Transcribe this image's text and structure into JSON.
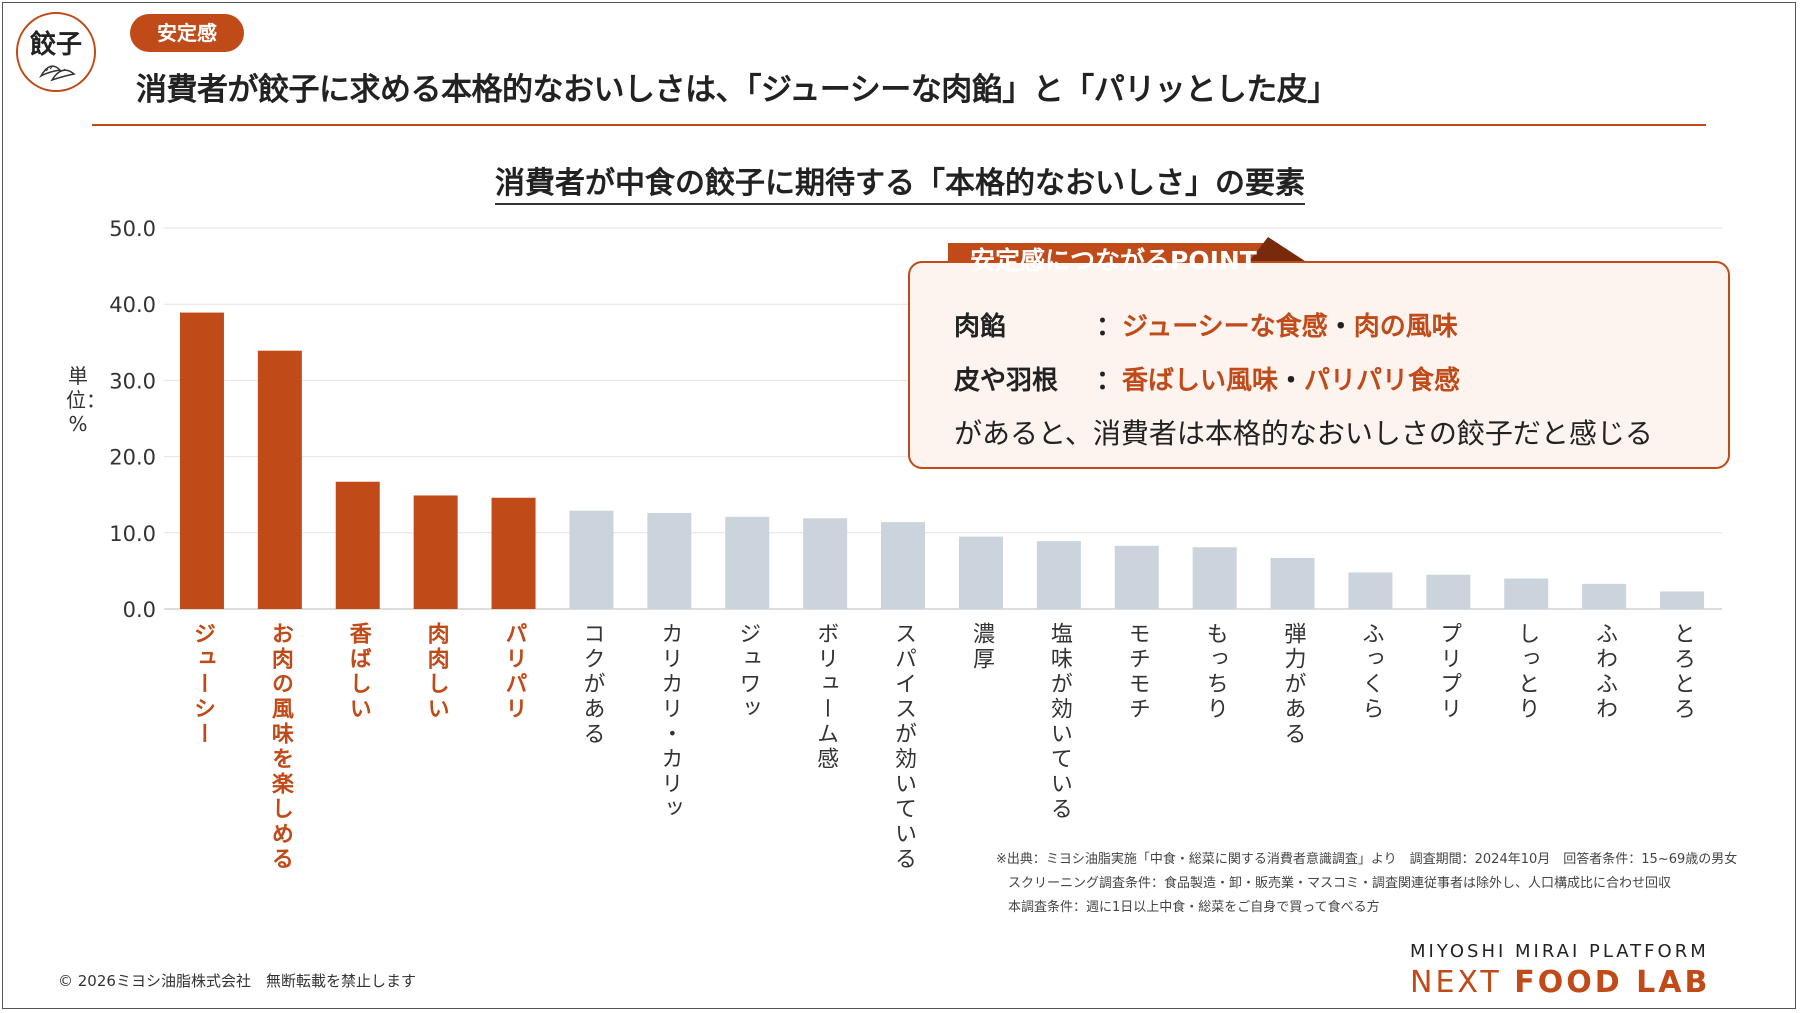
{
  "header": {
    "logo_text": "餃子",
    "tag": "安定感",
    "title": "消費者が餃子に求める本格的なおいしさは、「ジューシーな肉餡」と「パリッとした皮」"
  },
  "colors": {
    "accent": "#c04a18",
    "bar_highlight": "#c04a18",
    "bar_normal": "#cbd3dc",
    "grid": "#e3e3e3"
  },
  "chart_data": {
    "type": "bar",
    "title": "消費者が中食の餃子に期待する「本格的なおいしさ」の要素",
    "ylabel": "単位：%",
    "ylim": [
      0,
      50
    ],
    "yticks": [
      "50.0",
      "40.0",
      "30.0",
      "20.0",
      "10.0",
      "0.0"
    ],
    "ytick_values": [
      50,
      40,
      30,
      20,
      10,
      0
    ],
    "grid": true,
    "categories": [
      "ジューシー",
      "お肉の風味を楽しめる",
      "香ばしい",
      "肉肉しい",
      "パリパリ",
      "コクがある",
      "カリカリ・カリッ",
      "ジュワッ",
      "ボリューム感",
      "スパイスが効いている",
      "濃厚",
      "塩味が効いている",
      "モチモチ",
      "もっちり",
      "弾力がある",
      "ふっくら",
      "プリプリ",
      "しっとり",
      "ふわふわ",
      "とろとろ"
    ],
    "values": [
      38.9,
      33.9,
      16.7,
      14.9,
      14.6,
      12.9,
      12.6,
      12.1,
      11.9,
      11.4,
      9.5,
      8.9,
      8.3,
      8.1,
      6.7,
      4.8,
      4.5,
      4.0,
      3.3,
      2.3
    ],
    "highlighted": [
      true,
      true,
      true,
      true,
      true,
      false,
      false,
      false,
      false,
      false,
      false,
      false,
      false,
      false,
      false,
      false,
      false,
      false,
      false,
      false
    ]
  },
  "point_box": {
    "tab": "安定感につながるPOINT",
    "row1_head": "肉餡",
    "row1_colon": "：",
    "row1_a": "ジューシーな食感",
    "row1_sep": "・",
    "row1_b": "肉の風味",
    "row2_head": "皮や羽根",
    "row2_colon": "：",
    "row2_a": "香ばしい風味",
    "row2_sep": "・",
    "row2_b": "パリパリ食感",
    "row3": "があると、消費者は本格的なおいしさの餃子だと感じる"
  },
  "notes": {
    "line1": "※出典：ミヨシ油脂実施「中食・総菜に関する消費者意識調査」より　調査期間：2024年10月　回答者条件：15~69歳の男女",
    "line2": "スクリーニング調査条件：食品製造・卸・販売業・マスコミ・調査関連従事者は除外し、人口構成比に合わせ回収",
    "line3": "本調査条件：週に1日以上中食・総菜をご自身で買って食べる方"
  },
  "footer": {
    "copyright": "© 2026ミヨシ油脂株式会社　無断転載を禁止します",
    "brand_line1": "MIYOSHI MIRAI PLATFORM",
    "brand_line2a": "NEXT",
    "brand_line2b": "FOOD LAB"
  }
}
